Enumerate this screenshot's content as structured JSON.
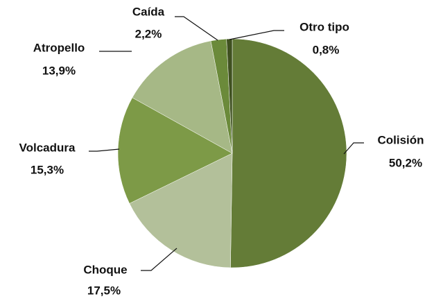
{
  "chart_data": {
    "type": "pie",
    "categories": [
      "Colisión",
      "Choque",
      "Volcadura",
      "Atropello",
      "Caída",
      "Otro tipo"
    ],
    "values": [
      50.2,
      17.5,
      15.3,
      13.9,
      2.2,
      0.8
    ],
    "value_labels": [
      "50,2%",
      "17,5%",
      "15,3%",
      "13,9%",
      "2,2%",
      "0,8%"
    ],
    "colors": [
      "#647c37",
      "#b3c09a",
      "#7d9a47",
      "#a6b886",
      "#6b8a3a",
      "#3f5020"
    ]
  }
}
